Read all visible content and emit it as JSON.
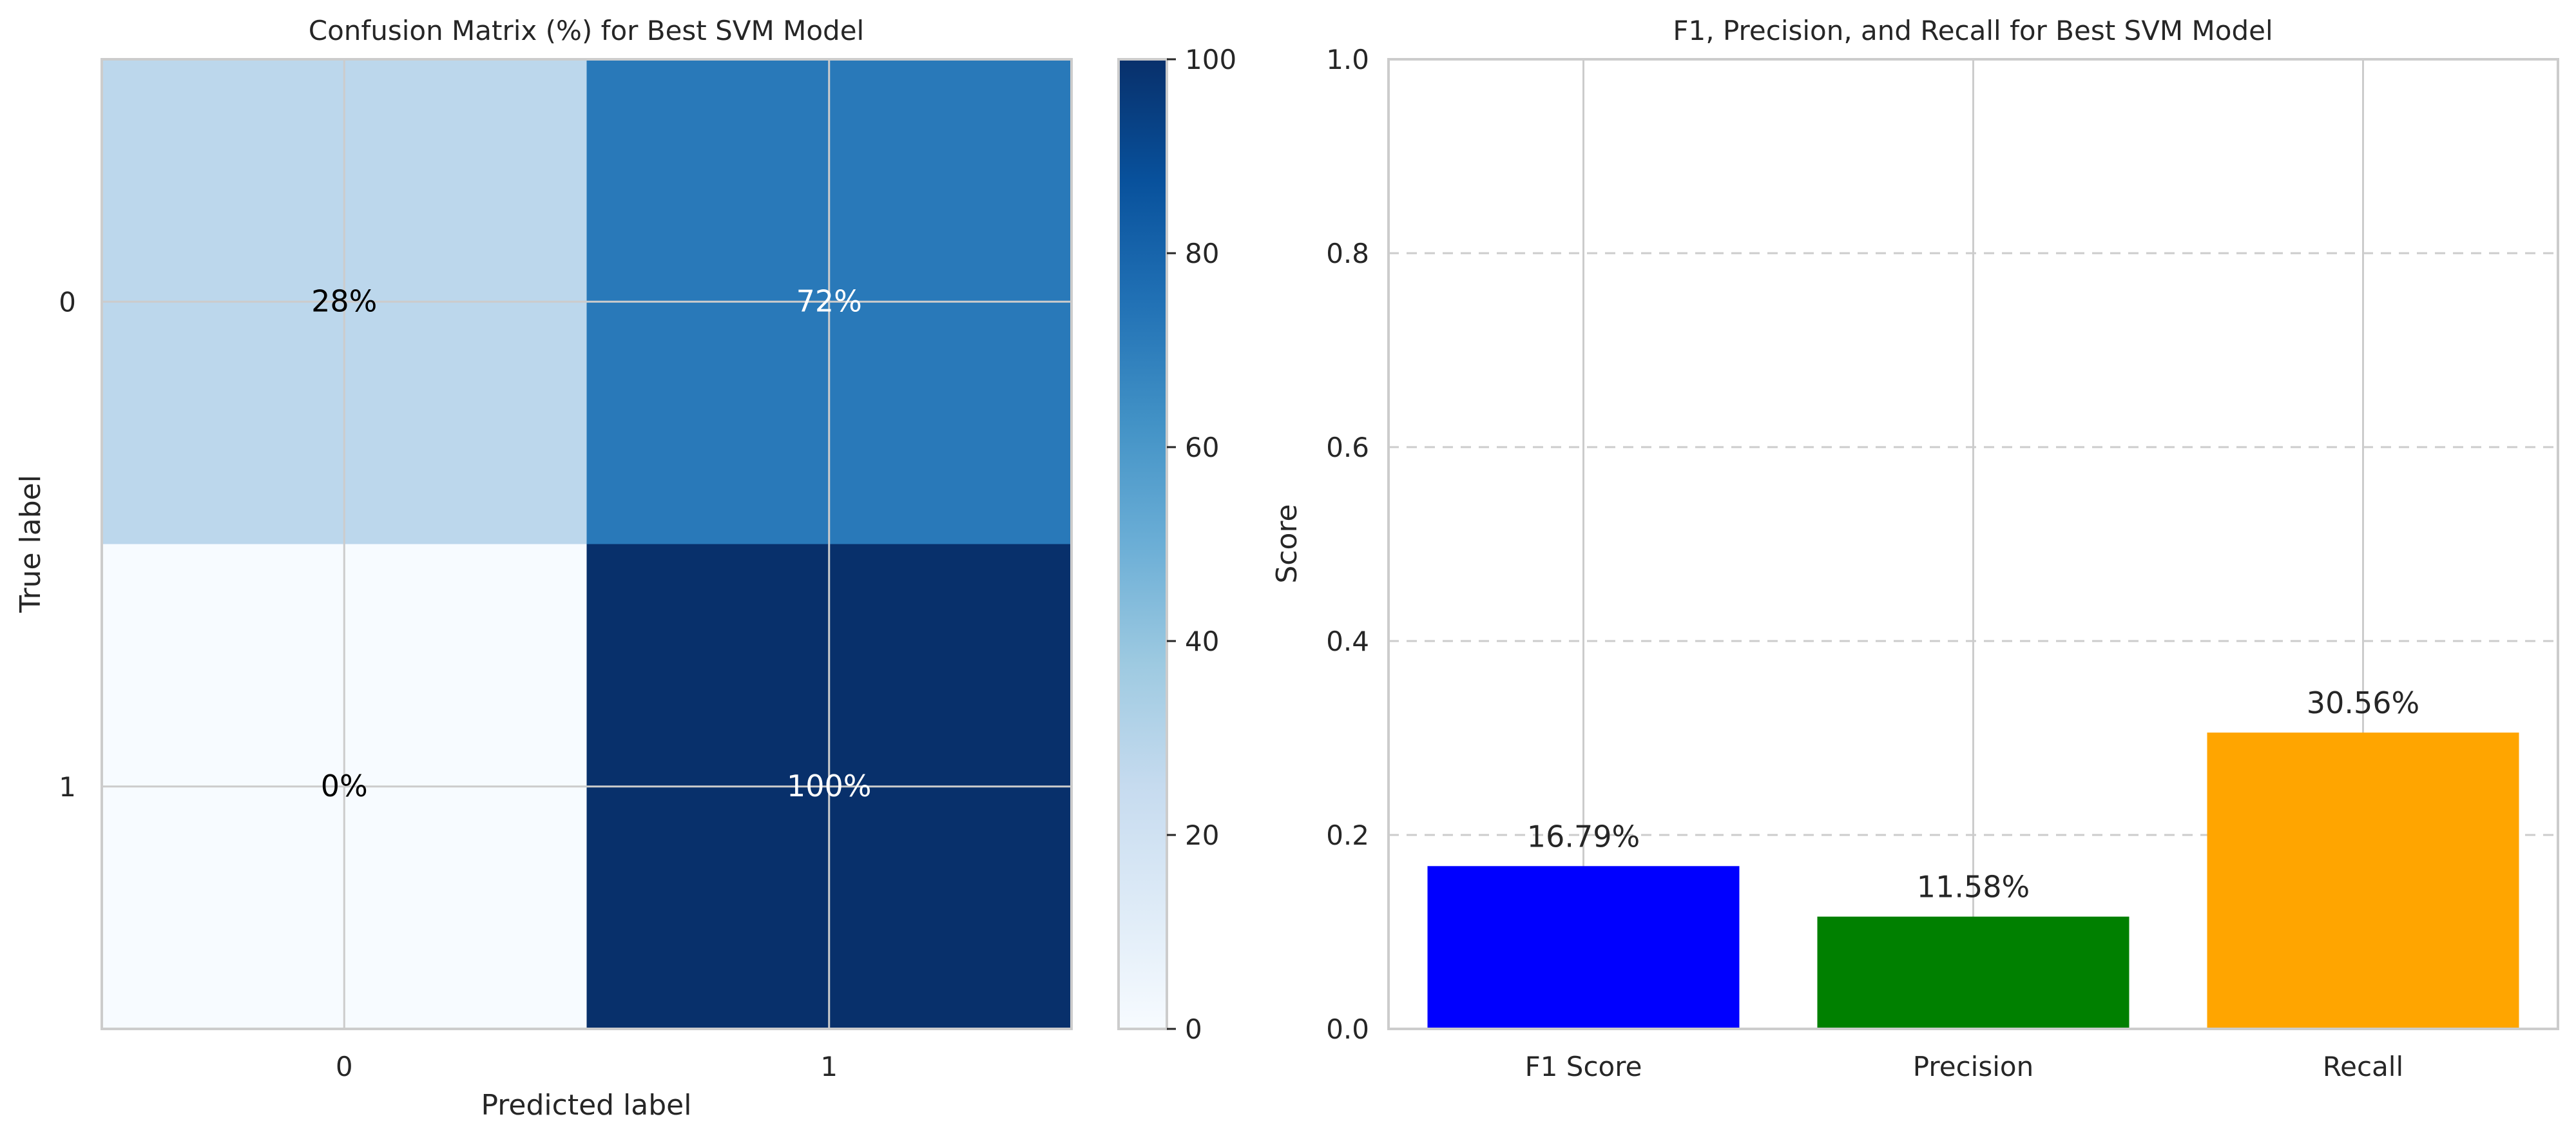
{
  "chart_data": [
    {
      "type": "heatmap",
      "title": "Confusion Matrix (%) for Best SVM Model",
      "xlabel": "Predicted label",
      "ylabel": "True label",
      "x_categories": [
        "0",
        "1"
      ],
      "y_categories": [
        "0",
        "1"
      ],
      "values": [
        [
          28,
          72
        ],
        [
          0,
          100
        ]
      ],
      "cell_labels": [
        [
          "28%",
          "72%"
        ],
        [
          "0%",
          "100%"
        ]
      ],
      "colormap": "Blues",
      "colorbar": {
        "range": [
          0,
          100
        ],
        "ticks": [
          "0",
          "20",
          "40",
          "60",
          "80",
          "100"
        ]
      },
      "grid": true
    },
    {
      "type": "bar",
      "title": "F1, Precision, and Recall for Best SVM Model",
      "categories": [
        "F1 Score",
        "Precision",
        "Recall"
      ],
      "values": [
        0.1679,
        0.1158,
        0.3056
      ],
      "data_labels": [
        "16.79%",
        "11.58%",
        "30.56%"
      ],
      "colors": [
        "#0000ff",
        "#008000",
        "#ffa500"
      ],
      "xlabel": "",
      "ylabel": "Score",
      "ylim": [
        0,
        1.0
      ],
      "yticks": [
        "0.0",
        "0.2",
        "0.4",
        "0.6",
        "0.8",
        "1.0"
      ],
      "grid": true
    }
  ]
}
